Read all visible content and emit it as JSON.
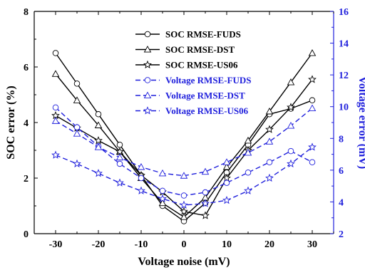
{
  "chart_data": {
    "type": "line",
    "x": [
      -30,
      -25,
      -20,
      -15,
      -10,
      -5,
      0,
      5,
      10,
      15,
      20,
      25,
      30
    ],
    "xlabel": "Voltage noise (mV)",
    "ylabel_left": "SOC error (%)",
    "ylabel_right": "Voltage error (mV)",
    "xlim": [
      -35,
      35
    ],
    "ylim_left": [
      0,
      8
    ],
    "ylim_right": [
      2,
      16
    ],
    "x_ticks": [
      -30,
      -20,
      -10,
      0,
      10,
      20,
      30
    ],
    "y_ticks_left": [
      0,
      2,
      4,
      6,
      8
    ],
    "y_ticks_right": [
      2,
      4,
      6,
      8,
      10,
      12,
      14,
      16
    ],
    "legend_position": "top-center",
    "colors": {
      "soc": "#000000",
      "voltage": "#1f1fdc",
      "right_axis": "#1f1fdc"
    },
    "series": [
      {
        "name": "SOC RMSE-FUDS",
        "axis": "left",
        "marker": "circle",
        "dash": "solid",
        "values": [
          6.5,
          5.4,
          4.3,
          3.2,
          2.1,
          1.0,
          0.45,
          1.1,
          2.2,
          3.2,
          4.3,
          4.5,
          4.8
        ]
      },
      {
        "name": "SOC RMSE-DST",
        "axis": "left",
        "marker": "triangle",
        "dash": "solid",
        "values": [
          5.75,
          4.8,
          3.9,
          2.95,
          2.0,
          1.1,
          0.6,
          1.3,
          2.4,
          3.35,
          4.4,
          5.45,
          6.5
        ]
      },
      {
        "name": "SOC RMSE-US06",
        "axis": "left",
        "marker": "star",
        "dash": "solid",
        "values": [
          4.25,
          3.8,
          3.35,
          2.95,
          2.1,
          1.5,
          0.8,
          0.65,
          2.0,
          3.0,
          3.75,
          4.55,
          5.55
        ]
      },
      {
        "name": "Voltage RMSE-FUDS",
        "axis": "right",
        "marker": "circle",
        "dash": "dashed",
        "values": [
          9.95,
          8.7,
          7.5,
          6.4,
          5.5,
          4.7,
          4.4,
          4.6,
          5.2,
          5.85,
          6.5,
          7.2,
          6.5
        ]
      },
      {
        "name": "Voltage RMSE-DST",
        "axis": "right",
        "marker": "triangle",
        "dash": "dashed",
        "values": [
          9.1,
          8.3,
          7.45,
          6.8,
          6.2,
          5.8,
          5.65,
          5.9,
          6.5,
          7.1,
          7.8,
          8.8,
          9.9
        ]
      },
      {
        "name": "Voltage RMSE-US06",
        "axis": "right",
        "marker": "star",
        "dash": "dashed",
        "values": [
          6.95,
          6.4,
          5.8,
          5.2,
          4.7,
          4.2,
          3.8,
          3.9,
          4.1,
          4.7,
          5.5,
          6.4,
          7.45
        ]
      }
    ]
  }
}
